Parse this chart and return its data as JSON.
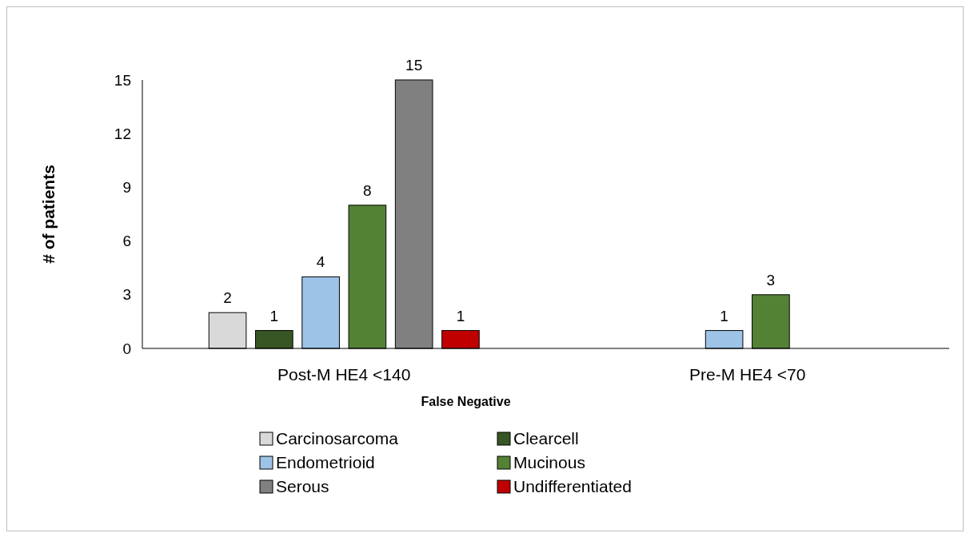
{
  "chart_data": {
    "type": "bar",
    "xlabel": "False Negative",
    "ylabel": "# of patients",
    "categories": [
      "Post-M HE4 <140",
      "Pre-M HE4 <70"
    ],
    "series": [
      {
        "name": "Carcinosarcoma",
        "color": "#d9d9d9",
        "values": [
          2,
          null
        ]
      },
      {
        "name": "Clearcell",
        "color": "#375623",
        "values": [
          1,
          null
        ]
      },
      {
        "name": "Endometrioid",
        "color": "#9dc3e6",
        "values": [
          4,
          1
        ]
      },
      {
        "name": "Mucinous",
        "color": "#548235",
        "values": [
          8,
          3
        ]
      },
      {
        "name": "Serous",
        "color": "#808080",
        "values": [
          15,
          null
        ]
      },
      {
        "name": "Undifferentiated",
        "color": "#c00000",
        "values": [
          1,
          null
        ]
      }
    ],
    "ylim": [
      0,
      15
    ],
    "yticks": [
      0,
      3,
      6,
      9,
      12,
      15
    ],
    "data_labels": true,
    "legend": "bottom",
    "grid": false
  }
}
